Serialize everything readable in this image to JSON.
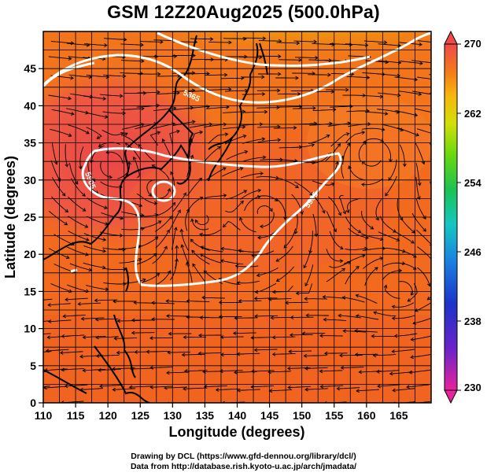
{
  "title": "GSM 12Z20Aug2025 (500.0hPa)",
  "credit": {
    "line1": "Drawing by DCL (https://www.gfd-dennou.org/library/dcl/)",
    "line2": "Data from http://database.rish.kyoto-u.ac.jp/arch/jmadata/"
  },
  "chart_data": {
    "type": "heatmap",
    "overlay": [
      "streamlines",
      "contour",
      "coastlines"
    ],
    "xlabel": "Longitude (degrees)",
    "ylabel": "Latitude  (degrees)",
    "xlim": [
      110,
      170
    ],
    "ylim": [
      0,
      50
    ],
    "x_ticks": [
      110,
      115,
      120,
      125,
      130,
      135,
      140,
      145,
      150,
      155,
      160,
      165
    ],
    "y_ticks": [
      0,
      5,
      10,
      15,
      20,
      25,
      30,
      35,
      40,
      45
    ],
    "grid": true,
    "colorbar": {
      "range": [
        230,
        270
      ],
      "labels": [
        270,
        262,
        254,
        246,
        238,
        230
      ],
      "position": "right"
    },
    "contours": [
      {
        "label": "5905",
        "color": "#ffffff"
      },
      {
        "label": "5865",
        "color": "#ffffff"
      }
    ],
    "field_description_colors": {
      "high": "#e94a4a",
      "mid": "#f26a1c",
      "low": "#8fd600"
    }
  }
}
